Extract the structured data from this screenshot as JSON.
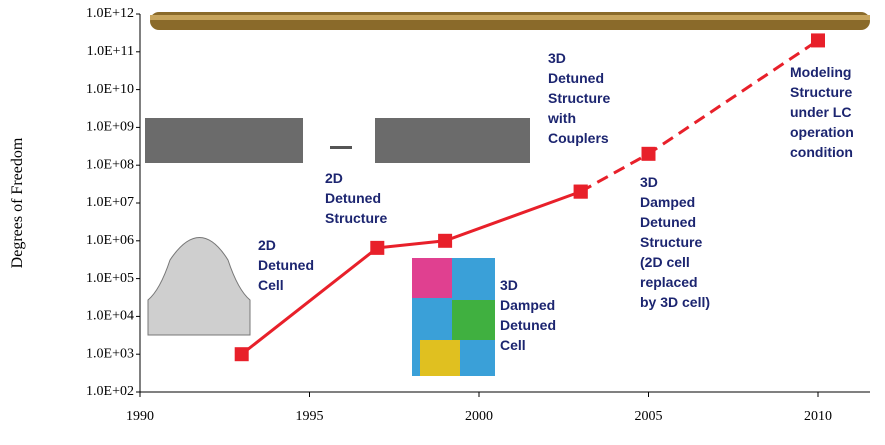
{
  "chart_data": {
    "type": "line",
    "ylabel": "Degrees of Freedom",
    "log_y": true,
    "xlim": [
      1990,
      2010
    ],
    "xticks": [
      1990,
      1995,
      2000,
      2005,
      2010
    ],
    "ylim": [
      100,
      1000000000000
    ],
    "yticks": [
      {
        "value": 100,
        "label": "1.0E+02"
      },
      {
        "value": 1000,
        "label": "1.0E+03"
      },
      {
        "value": 10000,
        "label": "1.0E+04"
      },
      {
        "value": 100000,
        "label": "1.0E+05"
      },
      {
        "value": 1000000,
        "label": "1.0E+06"
      },
      {
        "value": 10000000,
        "label": "1.0E+07"
      },
      {
        "value": 100000000,
        "label": "1.0E+08"
      },
      {
        "value": 1000000000,
        "label": "1.0E+09"
      },
      {
        "value": 10000000000,
        "label": "1.0E+10"
      },
      {
        "value": 100000000000,
        "label": "1.0E+11"
      },
      {
        "value": 1000000000000,
        "label": "1.0E+12"
      }
    ],
    "x": [
      1993,
      1997,
      1999,
      2003,
      2005,
      2010
    ],
    "series": [
      {
        "color": "#e8202a",
        "dashed": false,
        "values": [
          1000,
          650000,
          1000000,
          20000000,
          null,
          null
        ]
      },
      {
        "color": "#e8202a",
        "dashed": true,
        "values": [
          null,
          null,
          null,
          20000000,
          200000000,
          200000000000
        ]
      }
    ],
    "annotations": [
      [
        "2D",
        "Detuned",
        "Cell"
      ],
      [
        "2D",
        "Detuned",
        "Structure"
      ],
      [
        "3D",
        "Damped",
        "Detuned",
        "Cell"
      ],
      [
        "3D",
        "Detuned",
        "Structure",
        "with",
        "Couplers"
      ],
      [
        "3D",
        "Damped",
        "Detuned",
        "Structure",
        "(2D cell",
        "replaced",
        "by 3D cell)"
      ],
      [
        "Modeling",
        "Structure",
        "under LC",
        "operation",
        "condition"
      ]
    ]
  }
}
